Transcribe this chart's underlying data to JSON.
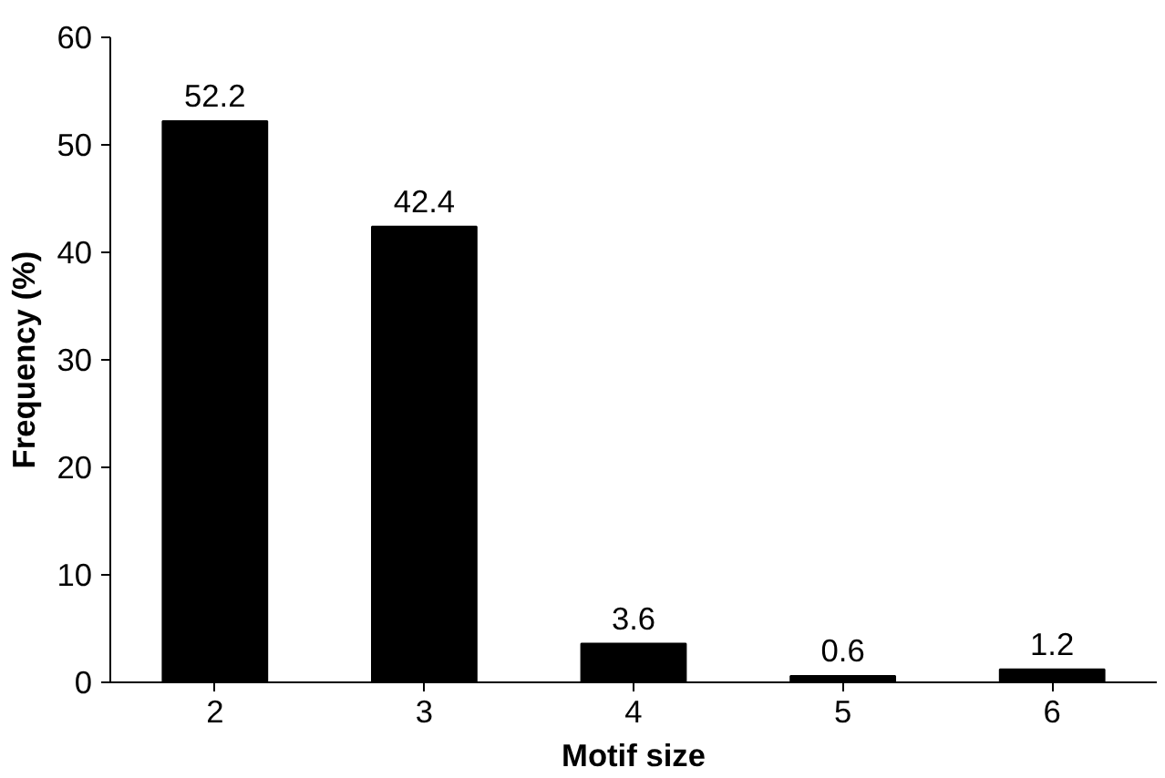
{
  "chart_data": {
    "type": "bar",
    "xlabel": "Motif size",
    "ylabel": "Frequency (%)",
    "categories": [
      "2",
      "3",
      "4",
      "5",
      "6"
    ],
    "values": [
      52.2,
      42.4,
      3.6,
      0.6,
      1.2
    ],
    "color": "#000000",
    "ylim": [
      0,
      60
    ],
    "yticks": [
      0,
      10,
      20,
      30,
      40,
      50,
      60
    ],
    "data_labels": true,
    "grid": false
  }
}
